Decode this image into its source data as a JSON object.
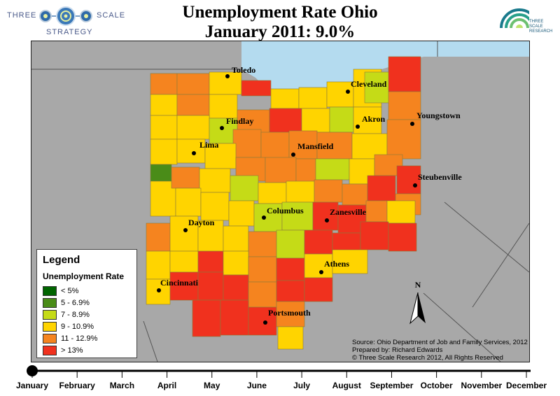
{
  "title_line1": "Unemployment Rate Ohio",
  "title_line2": "January 2011: 9.0%",
  "logo_left": {
    "word1": "THREE",
    "word2": "SCALE",
    "word3": "STRATEGY"
  },
  "logo_right": {
    "line1": "THREE",
    "line2": "SCALE",
    "line3": "RESEARCH"
  },
  "legend": {
    "title": "Legend",
    "subtitle": "Unemployment Rate",
    "classes": [
      {
        "label": "< 5%",
        "color": "#006400"
      },
      {
        "label": "5 - 6.9%",
        "color": "#4a8c18"
      },
      {
        "label": "7 - 8.9%",
        "color": "#c5db17"
      },
      {
        "label": "9 - 10.9%",
        "color": "#ffd400"
      },
      {
        "label": "11 - 12.9%",
        "color": "#f5841f"
      },
      {
        "label": "> 13%",
        "color": "#f0311e"
      }
    ]
  },
  "cities": [
    {
      "name": "Toledo"
    },
    {
      "name": "Cleveland"
    },
    {
      "name": "Findlay"
    },
    {
      "name": "Akron"
    },
    {
      "name": "Youngstown"
    },
    {
      "name": "Lima"
    },
    {
      "name": "Mansfield"
    },
    {
      "name": "Steubenville"
    },
    {
      "name": "Columbus"
    },
    {
      "name": "Zanesville"
    },
    {
      "name": "Dayton"
    },
    {
      "name": "Athens"
    },
    {
      "name": "Cincinnati"
    },
    {
      "name": "Portsmouth"
    }
  ],
  "north_label": "N",
  "source": {
    "line1": "Source: Ohio Department of Job and Family Services, 2012",
    "line2": "Prepared by: Richard Edwards",
    "line3": "© Three Scale Research 2012, All Rights Reserved"
  },
  "timeline": {
    "months": [
      "January",
      "February",
      "March",
      "April",
      "May",
      "June",
      "July",
      "August",
      "September",
      "October",
      "November",
      "December"
    ],
    "selected_index": 0
  }
}
